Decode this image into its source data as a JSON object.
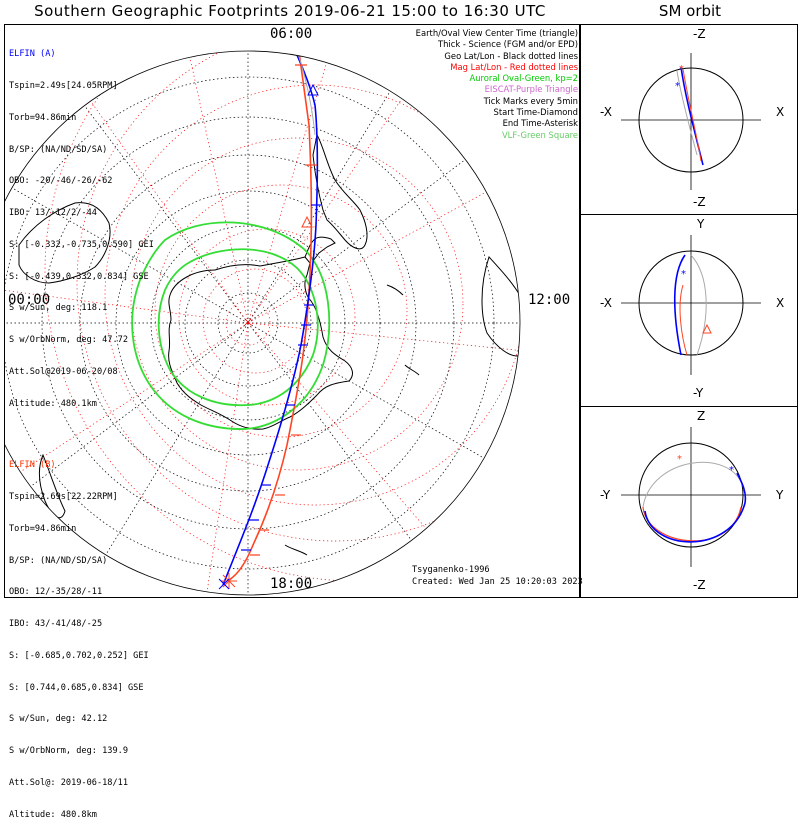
{
  "title": "Southern Geographic Footprints 2019-06-21 15:00 to 16:30 UTC",
  "sm_title": "SM orbit",
  "time_labels": {
    "top": "06:00",
    "left": "00:00",
    "right": "12:00",
    "bottom": "18:00"
  },
  "elfin_a": {
    "name": "ELFIN (A)",
    "color": "#0000ff",
    "lines": [
      "Tspin=2.49s[24.05RPM]",
      "Torb=94.86min",
      "B/SP: (NA/ND/SD/SA)",
      "OBO: -20/-46/-26/-62",
      "IBO: 13/-12/2/-44",
      "S: [-0.332,-0.735,0.590] GEI",
      "S: [-0.439,0.332,0.834] GSE",
      "S w/Sun, deg: 118.1",
      "S w/OrbNorm, deg: 47.72",
      "Att.Sol@2019-06-20/08",
      "Altitude: 480.1km"
    ]
  },
  "elfin_b": {
    "name": "ELFIN (B)",
    "color": "#ff3300",
    "lines": [
      "Tspin=2.69s[22.22RPM]",
      "Torb=94.86min",
      "B/SP: (NA/ND/SD/SA)",
      "OBO: 12/-35/28/-11",
      "IBO: 43/-41/48/-25",
      "S: [-0.685,0.702,0.252] GEI",
      "S: [0.744,0.685,0.834] GSE",
      "S w/Sun, deg: 42.12",
      "S w/OrbNorm, deg: 139.9",
      "Att.Sol@: 2019-06-18/11",
      "Altitude: 480.8km"
    ]
  },
  "legend": [
    {
      "text": "Earth/Oval View Center Time (triangle)",
      "color": "#000000"
    },
    {
      "text": "Thick - Science (FGM and/or EPD)",
      "color": "#000000"
    },
    {
      "text": "Geo Lat/Lon - Black dotted lines",
      "color": "#000000"
    },
    {
      "text": "Mag Lat/Lon - Red dotted lines",
      "color": "#ff0000"
    },
    {
      "text": "Auroral Oval-Green, kp=2",
      "color": "#00cc00"
    },
    {
      "text": "EISCAT-Purple Triangle",
      "color": "#cc66cc"
    },
    {
      "text": "Tick Marks every 5min",
      "color": "#000000"
    },
    {
      "text": "Start Time-Diamond",
      "color": "#000000"
    },
    {
      "text": "End Time-Asterisk",
      "color": "#000000"
    },
    {
      "text": "VLF-Green Square",
      "color": "#66cc66"
    }
  ],
  "footer": {
    "model": "Tsyganenko-1996",
    "created": "Created: Wed Jan 25 10:20:03 2023"
  },
  "sm_panels": [
    {
      "top": "-Z",
      "bottom": "-Z",
      "left": "-X",
      "right": "X"
    },
    {
      "top": "Y",
      "bottom": "-Y",
      "left": "-X",
      "right": "X"
    },
    {
      "top": "Z",
      "bottom": "-Z",
      "left": "-Y",
      "right": "Y"
    }
  ]
}
